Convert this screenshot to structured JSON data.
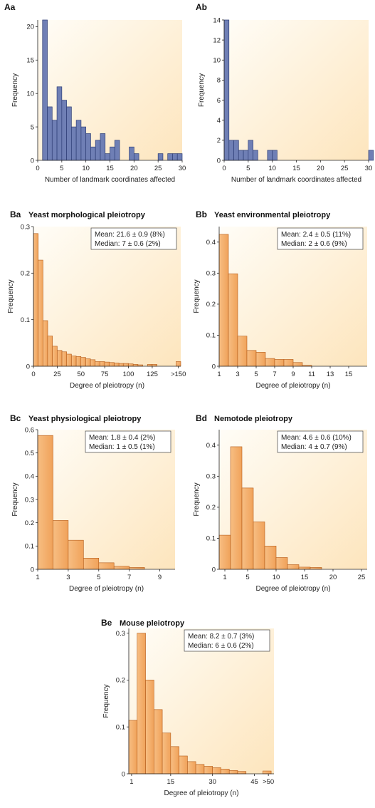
{
  "colors": {
    "blue_bar": "#6f7fb5",
    "blue_edge": "#2f3f77",
    "orange_bar": "#f0a25a",
    "orange_edge": "#b35a18",
    "bg_light": "#fffdf7",
    "bg_warm": "#fde5bd"
  },
  "chart_data": [
    {
      "id": "Aa",
      "type": "bar",
      "letter": "Aa",
      "title": "",
      "xlabel": "Number of landmark coordinates affected",
      "ylabel": "Frequency",
      "xlim": [
        0,
        30
      ],
      "ylim": [
        0,
        21
      ],
      "xticks": [
        "0",
        "5",
        "10",
        "15",
        "20",
        "25",
        "30"
      ],
      "yticks": [
        "0",
        "5",
        "10",
        "15",
        "20"
      ],
      "bins": [
        [
          1,
          2,
          21
        ],
        [
          2,
          3,
          8
        ],
        [
          3,
          4,
          6
        ],
        [
          4,
          5,
          11
        ],
        [
          5,
          6,
          9
        ],
        [
          6,
          7,
          8
        ],
        [
          7,
          8,
          5
        ],
        [
          8,
          9,
          6
        ],
        [
          9,
          10,
          5
        ],
        [
          10,
          11,
          4
        ],
        [
          11,
          12,
          2
        ],
        [
          12,
          13,
          3
        ],
        [
          13,
          14,
          4
        ],
        [
          14,
          15,
          1
        ],
        [
          15,
          16,
          2
        ],
        [
          16,
          17,
          3
        ],
        [
          19,
          20,
          2
        ],
        [
          20,
          21,
          1
        ],
        [
          25,
          26,
          1
        ],
        [
          27,
          28,
          1
        ],
        [
          28,
          29,
          1
        ],
        [
          29,
          30,
          1
        ]
      ]
    },
    {
      "id": "Ab",
      "type": "bar",
      "letter": "Ab",
      "title": "",
      "xlabel": "Number of landmark coordinates affected",
      "ylabel": "Frequency",
      "xlim": [
        0,
        30
      ],
      "ylim": [
        0,
        14
      ],
      "xticks": [
        "0",
        "5",
        "10",
        "15",
        "20",
        "25",
        "30"
      ],
      "yticks": [
        "0",
        "2",
        "4",
        "6",
        "8",
        "10",
        "12",
        "14"
      ],
      "bins": [
        [
          0,
          1,
          14
        ],
        [
          1,
          2,
          2
        ],
        [
          2,
          3,
          2
        ],
        [
          3,
          4,
          1
        ],
        [
          4,
          5,
          1
        ],
        [
          5,
          6,
          2
        ],
        [
          6,
          7,
          1
        ],
        [
          9,
          10,
          1
        ],
        [
          10,
          11,
          1
        ],
        [
          30,
          31,
          1
        ]
      ]
    },
    {
      "id": "Ba",
      "type": "bar",
      "letter": "Ba",
      "title": "Yeast morphological pleiotropy",
      "xlabel": "Degree of pleiotropy (n)",
      "ylabel": "Frequency",
      "xlim": [
        0,
        155
      ],
      "ylim": [
        0,
        0.3
      ],
      "xticks": [
        "0",
        "25",
        "50",
        "75",
        "100",
        "125",
        ">150"
      ],
      "yticks": [
        "0",
        "0.1",
        "0.2",
        "0.3"
      ],
      "mean": "Mean: 21.6 ± 0.9 (8%)",
      "median": "Median: 7 ± 0.6 (2%)",
      "bins": [
        [
          0,
          5,
          0.285
        ],
        [
          5,
          10,
          0.228
        ],
        [
          10,
          15,
          0.098
        ],
        [
          15,
          20,
          0.065
        ],
        [
          20,
          25,
          0.043
        ],
        [
          25,
          30,
          0.034
        ],
        [
          30,
          35,
          0.031
        ],
        [
          35,
          40,
          0.026
        ],
        [
          40,
          45,
          0.022
        ],
        [
          45,
          50,
          0.021
        ],
        [
          50,
          55,
          0.019
        ],
        [
          55,
          60,
          0.016
        ],
        [
          60,
          65,
          0.014
        ],
        [
          65,
          70,
          0.01
        ],
        [
          70,
          75,
          0.01
        ],
        [
          75,
          80,
          0.009
        ],
        [
          80,
          85,
          0.008
        ],
        [
          85,
          90,
          0.007
        ],
        [
          90,
          95,
          0.006
        ],
        [
          95,
          100,
          0.006
        ],
        [
          100,
          105,
          0.005
        ],
        [
          105,
          110,
          0.004
        ],
        [
          110,
          115,
          0.003
        ],
        [
          120,
          125,
          0.004
        ],
        [
          125,
          130,
          0.004
        ],
        [
          150,
          155,
          0.01
        ]
      ]
    },
    {
      "id": "Bb",
      "type": "bar",
      "letter": "Bb",
      "title": "Yeast environmental pleiotropy",
      "xlabel": "Degree of pleiotropy (n)",
      "ylabel": "Frequency",
      "xlim": [
        1,
        17
      ],
      "ylim": [
        0,
        0.45
      ],
      "xticks": [
        "1",
        "3",
        "5",
        "7",
        "9",
        "11",
        "13",
        "15"
      ],
      "yticks": [
        "0",
        "0.1",
        "0.2",
        "0.3",
        "0.4"
      ],
      "mean": "Mean: 2.4 ± 0.5 (11%)",
      "median": "Median: 2 ± 0.6 (9%)",
      "bins": [
        [
          1,
          2,
          0.425
        ],
        [
          2,
          3,
          0.298
        ],
        [
          3,
          4,
          0.097
        ],
        [
          4,
          5,
          0.051
        ],
        [
          5,
          6,
          0.045
        ],
        [
          6,
          7,
          0.025
        ],
        [
          7,
          8,
          0.022
        ],
        [
          8,
          9,
          0.022
        ],
        [
          9,
          10,
          0.012
        ],
        [
          10,
          11,
          0.003
        ]
      ]
    },
    {
      "id": "Bc",
      "type": "bar",
      "letter": "Bc",
      "title": "Yeast physiological pleiotropy",
      "xlabel": "Degree of pleiotropy (n)",
      "ylabel": "Frequency",
      "xlim": [
        1,
        10
      ],
      "ylim": [
        0,
        0.6
      ],
      "xticks": [
        "1",
        "3",
        "5",
        "7",
        "9"
      ],
      "yticks": [
        "0",
        "0.1",
        "0.2",
        "0.3",
        "0.4",
        "0.5",
        "0.6"
      ],
      "mean": "Mean: 1.8 ± 0.4 (2%)",
      "median": "Median: 1 ± 0.5 (1%)",
      "bins": [
        [
          1,
          2,
          0.575
        ],
        [
          2,
          3,
          0.21
        ],
        [
          3,
          4,
          0.125
        ],
        [
          4,
          5,
          0.048
        ],
        [
          5,
          6,
          0.028
        ],
        [
          6,
          7,
          0.013
        ],
        [
          7,
          8,
          0.008
        ]
      ]
    },
    {
      "id": "Bd",
      "type": "bar",
      "letter": "Bd",
      "title": "Nemotode pleiotropy",
      "xlabel": "Degree of pleiotropy (n)",
      "ylabel": "Frequency",
      "xlim": [
        0,
        26
      ],
      "ylim": [
        0,
        0.45
      ],
      "xticks": [
        "1",
        "5",
        "10",
        "15",
        "20",
        "25"
      ],
      "yticks": [
        "0",
        "0.1",
        "0.2",
        "0.3",
        "0.4"
      ],
      "mean": "Mean: 4.6 ± 0.6 (10%)",
      "median": "Median: 4 ± 0.7 (9%)",
      "bins": [
        [
          0,
          2,
          0.11
        ],
        [
          2,
          4,
          0.395
        ],
        [
          4,
          6,
          0.262
        ],
        [
          6,
          8,
          0.153
        ],
        [
          8,
          10,
          0.075
        ],
        [
          10,
          12,
          0.038
        ],
        [
          12,
          14,
          0.015
        ],
        [
          14,
          16,
          0.007
        ],
        [
          16,
          18,
          0.006
        ]
      ]
    },
    {
      "id": "Be",
      "type": "bar",
      "letter": "Be",
      "title": "Mouse pleiotropy",
      "xlabel": "Degree of pleiotropy (n)",
      "ylabel": "Frequency",
      "xlim": [
        0,
        52
      ],
      "ylim": [
        0,
        0.31
      ],
      "xticks": [
        "1",
        "15",
        "30",
        "45",
        ">50"
      ],
      "yticks": [
        "0",
        "0.1",
        "0.2",
        "0.3"
      ],
      "mean": "Mean: 8.2 ± 0.7 (3%)",
      "median": "Median: 6 ± 0.6 (2%)",
      "bins": [
        [
          0,
          3,
          0.114
        ],
        [
          3,
          6,
          0.3
        ],
        [
          6,
          9,
          0.2
        ],
        [
          9,
          12,
          0.137
        ],
        [
          12,
          15,
          0.087
        ],
        [
          15,
          18,
          0.058
        ],
        [
          18,
          21,
          0.038
        ],
        [
          21,
          24,
          0.026
        ],
        [
          24,
          27,
          0.02
        ],
        [
          27,
          30,
          0.016
        ],
        [
          30,
          33,
          0.013
        ],
        [
          33,
          36,
          0.01
        ],
        [
          36,
          39,
          0.007
        ],
        [
          39,
          42,
          0.005
        ],
        [
          48,
          51,
          0.006
        ]
      ]
    }
  ]
}
